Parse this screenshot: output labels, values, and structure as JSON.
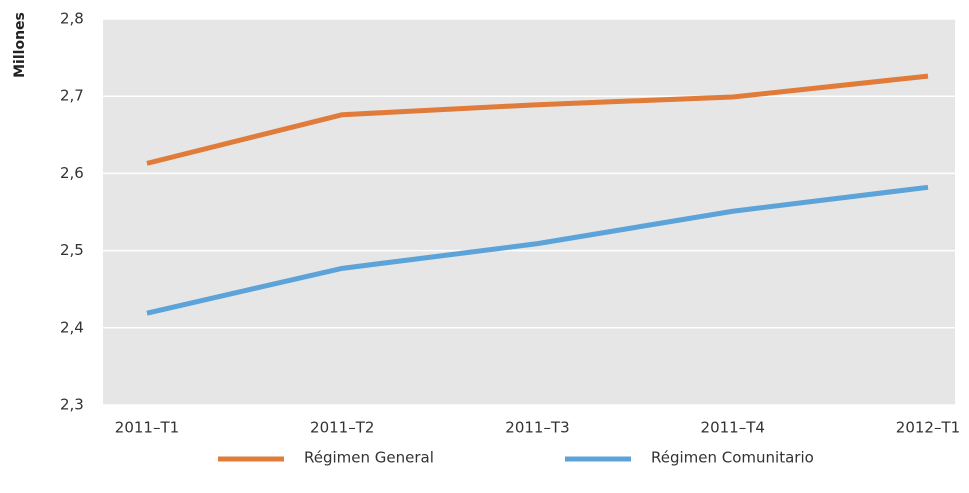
{
  "chart_data": {
    "type": "line",
    "y_label": "Millones",
    "categories": [
      "2011–T1",
      "2011–T2",
      "2011–T3",
      "2011–T4",
      "2012–T1"
    ],
    "series": [
      {
        "name": "Régimen General",
        "color": "#e07b39",
        "values": [
          2.613,
          2.676,
          2.689,
          2.699,
          2.726
        ]
      },
      {
        "name": "Régimen Comunitario",
        "color": "#5ba3d9",
        "values": [
          2.419,
          2.477,
          2.509,
          2.551,
          2.582
        ]
      }
    ],
    "ylim": [
      2.3,
      2.8
    ],
    "yticks": [
      {
        "value": 2.3,
        "label": "2,3"
      },
      {
        "value": 2.4,
        "label": "2,4"
      },
      {
        "value": 2.5,
        "label": "2,5"
      },
      {
        "value": 2.6,
        "label": "2,6"
      },
      {
        "value": 2.7,
        "label": "2,7"
      },
      {
        "value": 2.8,
        "label": "2,8"
      }
    ],
    "grid": true
  }
}
